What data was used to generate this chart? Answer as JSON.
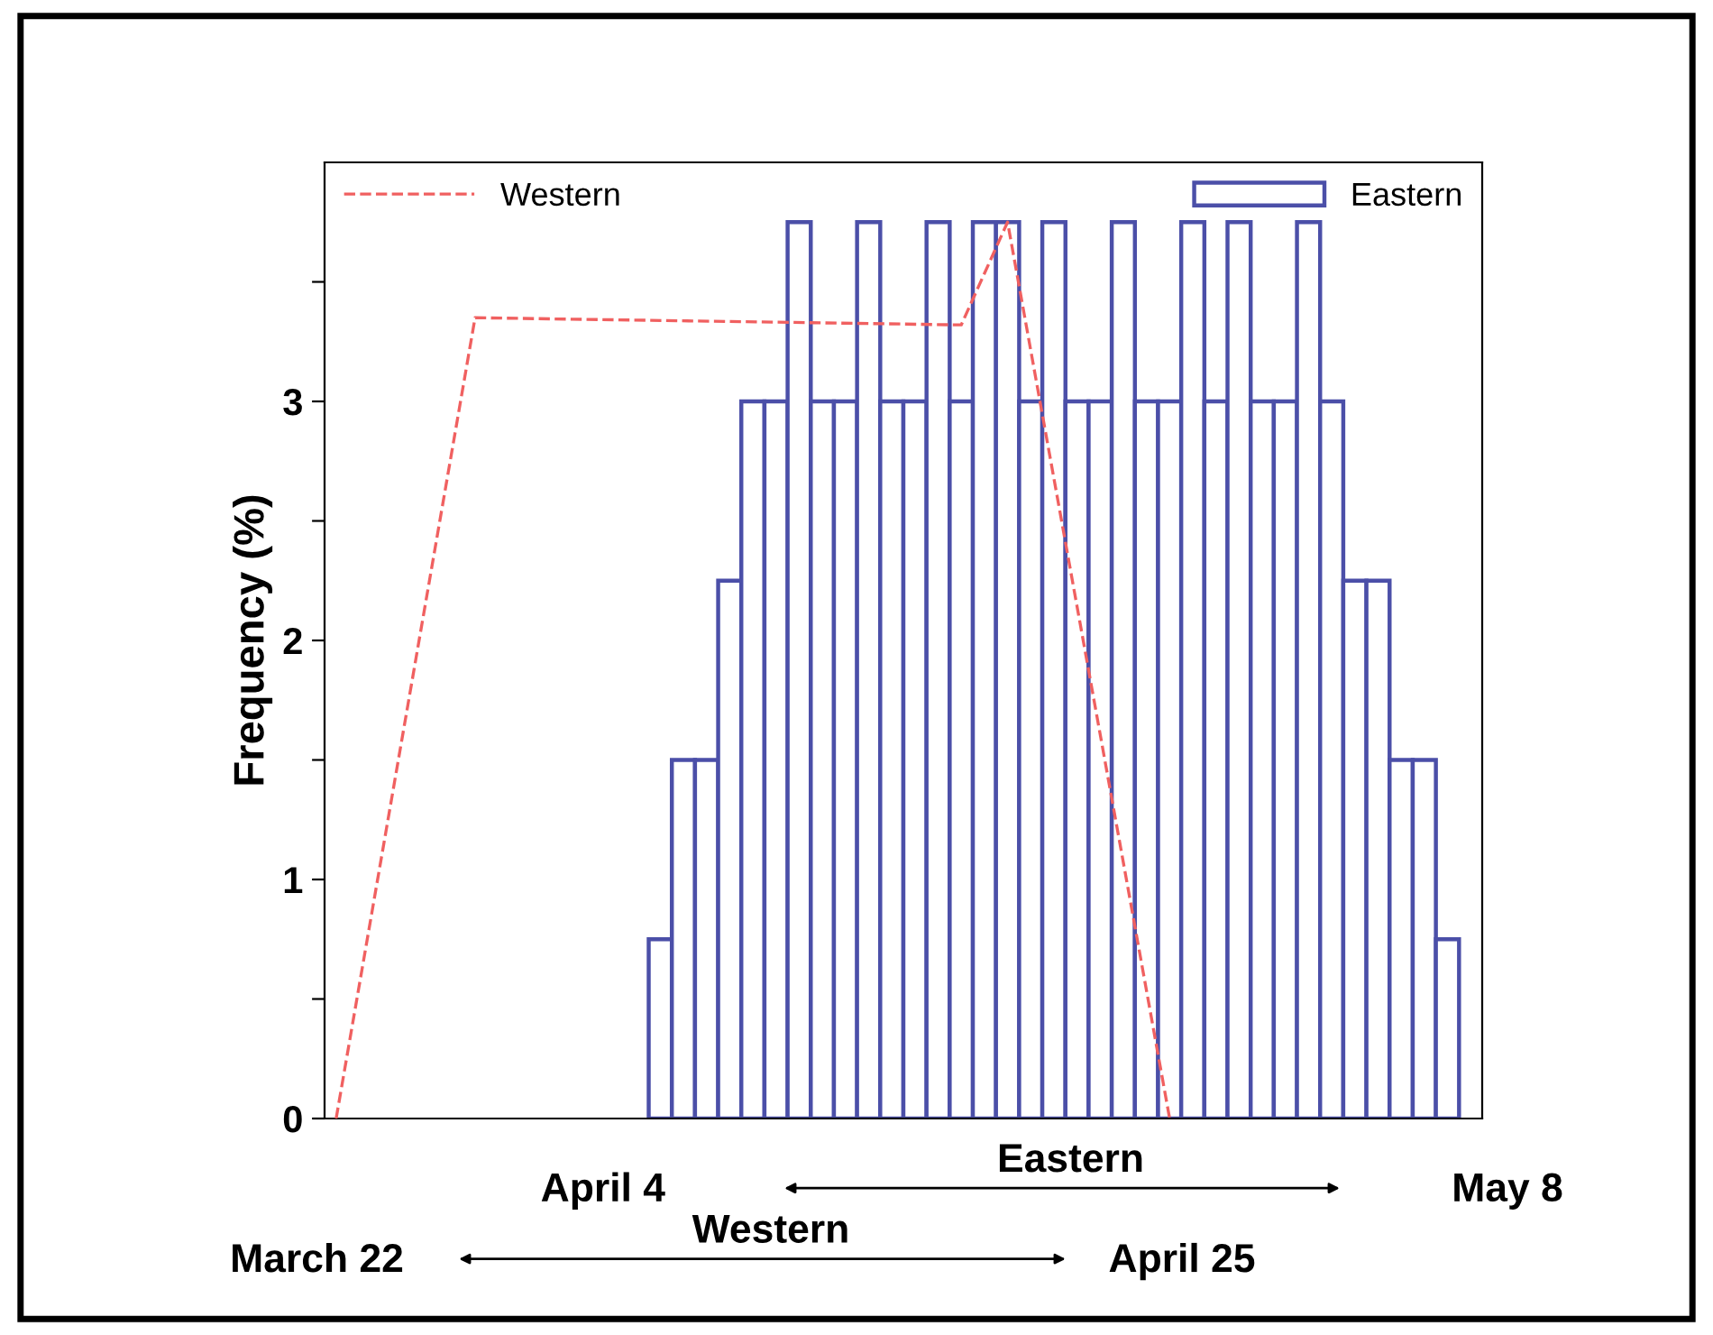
{
  "chart_data": {
    "type": "bar",
    "ylabel": "Frequency (%)",
    "categories": [
      null,
      null,
      null,
      null,
      null,
      null,
      null,
      null,
      null,
      null,
      null,
      null,
      null,
      null,
      null,
      null,
      null,
      null,
      null,
      null,
      null,
      null,
      null,
      null,
      null,
      null,
      null,
      null,
      null,
      null,
      null,
      null,
      null,
      null,
      null,
      null,
      null,
      null,
      null,
      null,
      null,
      null,
      null,
      null,
      null,
      null,
      null,
      null,
      null,
      null
    ],
    "series": [
      {
        "name": "Western",
        "type": "line",
        "color": "#f06060",
        "line_style": "dashed",
        "values": [
          0,
          null,
          null,
          null,
          null,
          null,
          3.35,
          null,
          null,
          null,
          null,
          null,
          null,
          null,
          null,
          null,
          null,
          null,
          null,
          null,
          null,
          null,
          null,
          null,
          null,
          null,
          null,
          3.32,
          null,
          3.75,
          null,
          null,
          null,
          null,
          null,
          null,
          0,
          null,
          null,
          null,
          null,
          null,
          null,
          null,
          null,
          null,
          null,
          null,
          null,
          null
        ]
      },
      {
        "name": "Eastern",
        "color": "#4b4fa8",
        "values": [
          null,
          null,
          null,
          null,
          null,
          null,
          null,
          null,
          null,
          null,
          null,
          null,
          null,
          null,
          0.75,
          1.5,
          1.5,
          2.25,
          3,
          3,
          3.75,
          3,
          3,
          3.75,
          3,
          3,
          3.75,
          3,
          3.75,
          3.75,
          3,
          3.75,
          3,
          3,
          3.75,
          3,
          3,
          3.75,
          3,
          3.75,
          3,
          3,
          3.75,
          3,
          2.25,
          2.25,
          1.5,
          1.5,
          0.75,
          null
        ]
      }
    ],
    "ylim": [
      0,
      4
    ],
    "yticks": [
      0,
      {
        "value": 0.5,
        "label": null
      },
      1,
      {
        "value": 1.5,
        "label": null
      },
      2,
      {
        "value": 2.5,
        "label": null
      },
      3,
      {
        "value": 3.5,
        "label": null
      }
    ],
    "legend": "top",
    "annotations": [
      "April 4",
      "Eastern",
      "May 8",
      "March 22",
      "Western",
      "April 25"
    ]
  }
}
